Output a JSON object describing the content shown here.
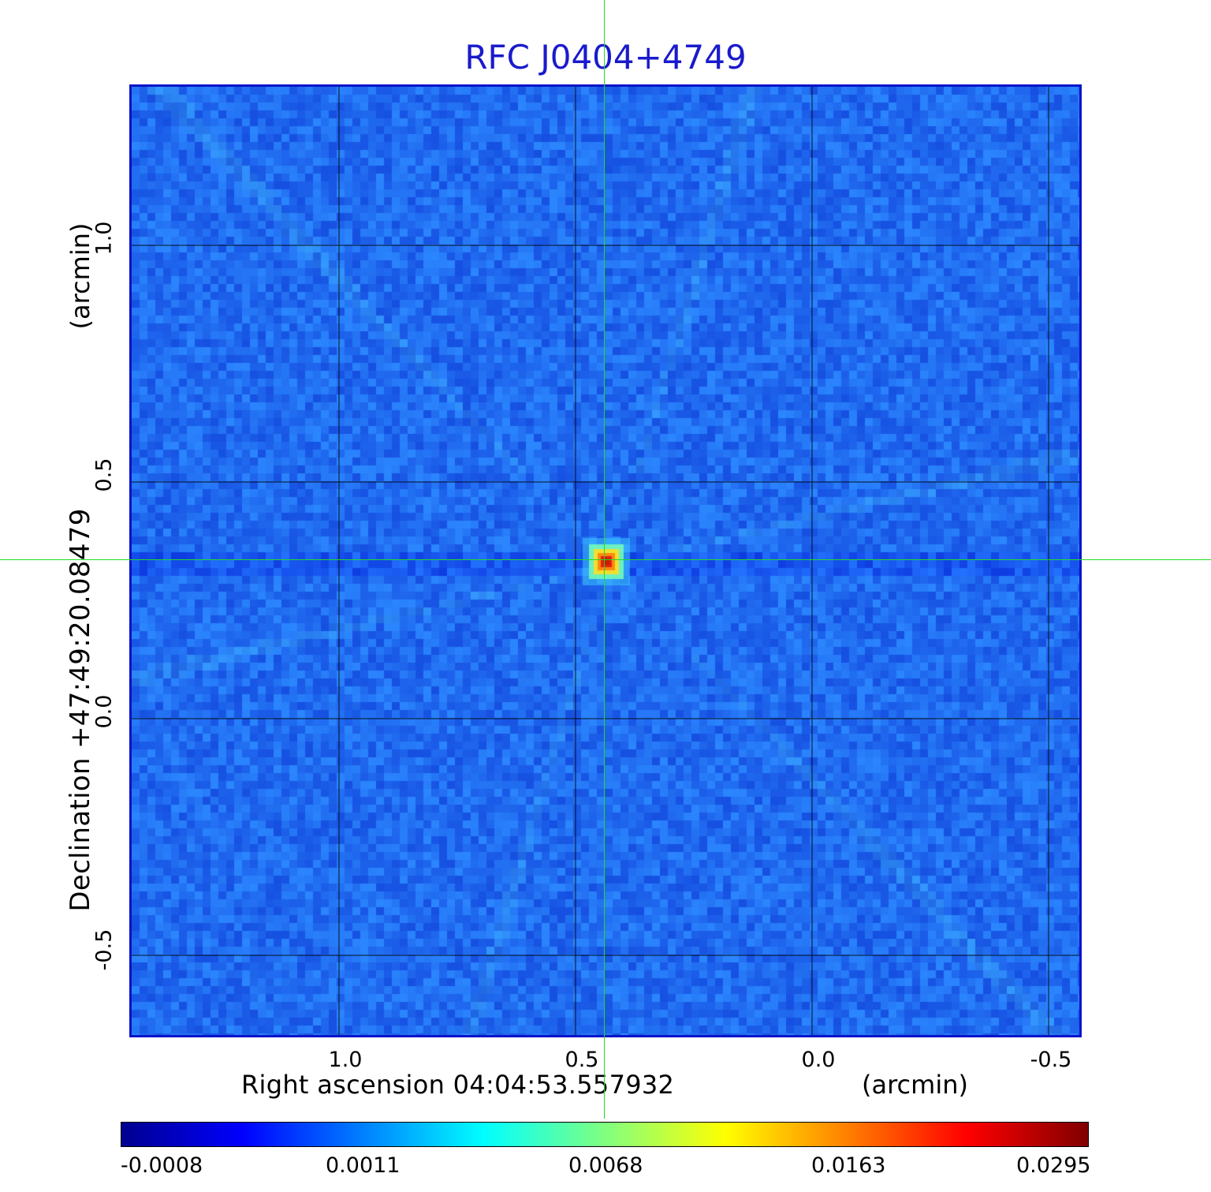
{
  "title": "RFC J0404+4749",
  "axes": {
    "xlabel": "Right ascension  04:04:53.557932",
    "xunit": "(arcmin)",
    "ylabel": "Declination  +47:49:20.08479",
    "yunit": "(arcmin)",
    "x_ticks": [
      "1.0",
      "0.5",
      "0.0",
      "-0.5"
    ],
    "y_ticks": [
      "1.0",
      "0.5",
      "0.0",
      "-0.5"
    ]
  },
  "image": {
    "colormap": "jet",
    "background_color": "#1d5cf0",
    "frame_color": "#0a14c8",
    "crosshair_color": "#22dd22",
    "peak_color": "#cc1a00"
  },
  "colorbar": {
    "ticks": [
      "-0.0008",
      "0.0011",
      "0.0068",
      "0.0163",
      "0.0295"
    ],
    "colors": [
      "#00008f",
      "#0000ff",
      "#0080ff",
      "#00ffff",
      "#80ff80",
      "#ffff00",
      "#ff8000",
      "#ff0000",
      "#800000"
    ]
  }
}
